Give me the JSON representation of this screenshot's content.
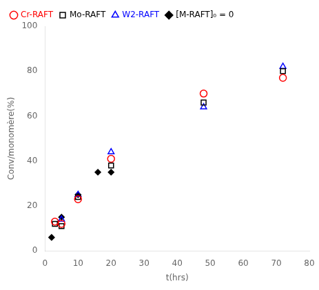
{
  "chart_data": {
    "type": "scatter",
    "xlabel": "t(hrs)",
    "ylabel": "Conv/monomère(%)",
    "xlim": [
      0,
      80
    ],
    "ylim": [
      0,
      100
    ],
    "xticks": [
      0,
      10,
      20,
      30,
      40,
      50,
      60,
      70,
      80
    ],
    "yticks": [
      0,
      20,
      40,
      60,
      80,
      100
    ],
    "grid": false,
    "legend": "upper left",
    "series": [
      {
        "name": "Cr-RAFT",
        "color": "#ff0000",
        "marker": "circle",
        "x": [
          3,
          5,
          10,
          20,
          48,
          72
        ],
        "values": [
          13,
          12,
          23,
          41,
          70,
          77
        ]
      },
      {
        "name": "Mo-RAFT",
        "color": "#000000",
        "marker": "square",
        "x": [
          3,
          5,
          10,
          20,
          48,
          72
        ],
        "values": [
          12,
          11,
          24,
          38,
          66,
          80
        ]
      },
      {
        "name": "W2-RAFT",
        "color": "#0000ff",
        "marker": "triangle",
        "x": [
          5,
          10,
          20,
          48,
          72
        ],
        "values": [
          14,
          25,
          44,
          64,
          82
        ]
      },
      {
        "name": "[M-RAFT]₀ = 0",
        "color": "#000000",
        "marker": "diamond",
        "x": [
          2,
          5,
          10,
          16,
          20
        ],
        "values": [
          6,
          15,
          25,
          35,
          35
        ]
      }
    ]
  }
}
